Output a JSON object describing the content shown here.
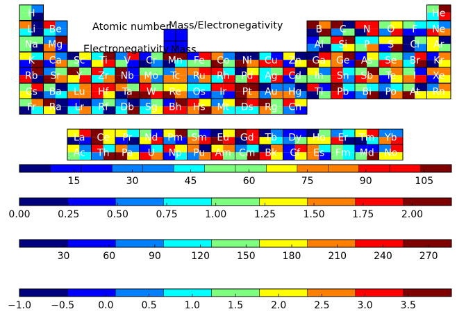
{
  "colormap": [
    "#00007f",
    "#0000ff",
    "#007fff",
    "#00ffff",
    "#7fff7f",
    "#ffff00",
    "#ff7f00",
    "#ff0000",
    "#7f0000"
  ],
  "chart_data": {
    "type": "heatmap",
    "title": "",
    "legend_labels": {
      "atomic_number": "Atomic number",
      "mass": "Mass",
      "electronegativity": "Electronegativity",
      "mass_electronegativity": "Mass/Electronegativity"
    },
    "elements": [
      {
        "symbol": "H",
        "period": 1,
        "group": 1
      },
      {
        "symbol": "He",
        "period": 1,
        "group": 18
      },
      {
        "symbol": "Li",
        "period": 2,
        "group": 1
      },
      {
        "symbol": "Be",
        "period": 2,
        "group": 2
      },
      {
        "symbol": "B",
        "period": 2,
        "group": 13
      },
      {
        "symbol": "C",
        "period": 2,
        "group": 14
      },
      {
        "symbol": "N",
        "period": 2,
        "group": 15
      },
      {
        "symbol": "O",
        "period": 2,
        "group": 16
      },
      {
        "symbol": "F",
        "period": 2,
        "group": 17
      },
      {
        "symbol": "Ne",
        "period": 2,
        "group": 18
      },
      {
        "symbol": "Na",
        "period": 3,
        "group": 1
      },
      {
        "symbol": "Mg",
        "period": 3,
        "group": 2
      },
      {
        "symbol": "Al",
        "period": 3,
        "group": 13
      },
      {
        "symbol": "Si",
        "period": 3,
        "group": 14
      },
      {
        "symbol": "P",
        "period": 3,
        "group": 15
      },
      {
        "symbol": "S",
        "period": 3,
        "group": 16
      },
      {
        "symbol": "Cl",
        "period": 3,
        "group": 17
      },
      {
        "symbol": "Ar",
        "period": 3,
        "group": 18
      },
      {
        "symbol": "K",
        "period": 4,
        "group": 1
      },
      {
        "symbol": "Ca",
        "period": 4,
        "group": 2
      },
      {
        "symbol": "Sc",
        "period": 4,
        "group": 3
      },
      {
        "symbol": "Ti",
        "period": 4,
        "group": 4
      },
      {
        "symbol": "V",
        "period": 4,
        "group": 5
      },
      {
        "symbol": "Cr",
        "period": 4,
        "group": 6
      },
      {
        "symbol": "Mn",
        "period": 4,
        "group": 7
      },
      {
        "symbol": "Fe",
        "period": 4,
        "group": 8
      },
      {
        "symbol": "Co",
        "period": 4,
        "group": 9
      },
      {
        "symbol": "Ni",
        "period": 4,
        "group": 10
      },
      {
        "symbol": "Cu",
        "period": 4,
        "group": 11
      },
      {
        "symbol": "Zn",
        "period": 4,
        "group": 12
      },
      {
        "symbol": "Ga",
        "period": 4,
        "group": 13
      },
      {
        "symbol": "Ge",
        "period": 4,
        "group": 14
      },
      {
        "symbol": "As",
        "period": 4,
        "group": 15
      },
      {
        "symbol": "Se",
        "period": 4,
        "group": 16
      },
      {
        "symbol": "Br",
        "period": 4,
        "group": 17
      },
      {
        "symbol": "Kr",
        "period": 4,
        "group": 18
      },
      {
        "symbol": "Rb",
        "period": 5,
        "group": 1
      },
      {
        "symbol": "Sr",
        "period": 5,
        "group": 2
      },
      {
        "symbol": "Y",
        "period": 5,
        "group": 3
      },
      {
        "symbol": "Zr",
        "period": 5,
        "group": 4
      },
      {
        "symbol": "Nb",
        "period": 5,
        "group": 5
      },
      {
        "symbol": "Mo",
        "period": 5,
        "group": 6
      },
      {
        "symbol": "Tc",
        "period": 5,
        "group": 7
      },
      {
        "symbol": "Ru",
        "period": 5,
        "group": 8
      },
      {
        "symbol": "Rh",
        "period": 5,
        "group": 9
      },
      {
        "symbol": "Pd",
        "period": 5,
        "group": 10
      },
      {
        "symbol": "Ag",
        "period": 5,
        "group": 11
      },
      {
        "symbol": "Cd",
        "period": 5,
        "group": 12
      },
      {
        "symbol": "In",
        "period": 5,
        "group": 13
      },
      {
        "symbol": "Sn",
        "period": 5,
        "group": 14
      },
      {
        "symbol": "Sb",
        "period": 5,
        "group": 15
      },
      {
        "symbol": "Te",
        "period": 5,
        "group": 16
      },
      {
        "symbol": "I",
        "period": 5,
        "group": 17
      },
      {
        "symbol": "Xe",
        "period": 5,
        "group": 18
      },
      {
        "symbol": "Cs",
        "period": 6,
        "group": 1
      },
      {
        "symbol": "Ba",
        "period": 6,
        "group": 2
      },
      {
        "symbol": "Lu",
        "period": 6,
        "group": 3
      },
      {
        "symbol": "Hf",
        "period": 6,
        "group": 4
      },
      {
        "symbol": "Ta",
        "period": 6,
        "group": 5
      },
      {
        "symbol": "W",
        "period": 6,
        "group": 6
      },
      {
        "symbol": "Re",
        "period": 6,
        "group": 7
      },
      {
        "symbol": "Os",
        "period": 6,
        "group": 8
      },
      {
        "symbol": "Ir",
        "period": 6,
        "group": 9
      },
      {
        "symbol": "Pt",
        "period": 6,
        "group": 10
      },
      {
        "symbol": "Au",
        "period": 6,
        "group": 11
      },
      {
        "symbol": "Hg",
        "period": 6,
        "group": 12
      },
      {
        "symbol": "Tl",
        "period": 6,
        "group": 13
      },
      {
        "symbol": "Pb",
        "period": 6,
        "group": 14
      },
      {
        "symbol": "Bi",
        "period": 6,
        "group": 15
      },
      {
        "symbol": "Po",
        "period": 6,
        "group": 16
      },
      {
        "symbol": "At",
        "period": 6,
        "group": 17
      },
      {
        "symbol": "Rn",
        "period": 6,
        "group": 18
      },
      {
        "symbol": "Fr",
        "period": 7,
        "group": 1
      },
      {
        "symbol": "Ra",
        "period": 7,
        "group": 2
      },
      {
        "symbol": "Lr",
        "period": 7,
        "group": 3
      },
      {
        "symbol": "Rf",
        "period": 7,
        "group": 4
      },
      {
        "symbol": "Db",
        "period": 7,
        "group": 5
      },
      {
        "symbol": "Sg",
        "period": 7,
        "group": 6
      },
      {
        "symbol": "Bh",
        "period": 7,
        "group": 7
      },
      {
        "symbol": "Hs",
        "period": 7,
        "group": 8
      },
      {
        "symbol": "Mt",
        "period": 7,
        "group": 9
      },
      {
        "symbol": "Ds",
        "period": 7,
        "group": 10
      },
      {
        "symbol": "Rg",
        "period": 7,
        "group": 11
      },
      {
        "symbol": "Cn",
        "period": 7,
        "group": 12
      },
      {
        "symbol": "La",
        "period": 8,
        "group": 3
      },
      {
        "symbol": "Ce",
        "period": 8,
        "group": 4
      },
      {
        "symbol": "Pr",
        "period": 8,
        "group": 5
      },
      {
        "symbol": "Nd",
        "period": 8,
        "group": 6
      },
      {
        "symbol": "Pm",
        "period": 8,
        "group": 7
      },
      {
        "symbol": "Sm",
        "period": 8,
        "group": 8
      },
      {
        "symbol": "Eu",
        "period": 8,
        "group": 9
      },
      {
        "symbol": "Gd",
        "period": 8,
        "group": 10
      },
      {
        "symbol": "Tb",
        "period": 8,
        "group": 11
      },
      {
        "symbol": "Dy",
        "period": 8,
        "group": 12
      },
      {
        "symbol": "Ho",
        "period": 8,
        "group": 13
      },
      {
        "symbol": "Er",
        "period": 8,
        "group": 14
      },
      {
        "symbol": "Tm",
        "period": 8,
        "group": 15
      },
      {
        "symbol": "Yb",
        "period": 8,
        "group": 16
      },
      {
        "symbol": "Ac",
        "period": 9,
        "group": 3
      },
      {
        "symbol": "Th",
        "period": 9,
        "group": 4
      },
      {
        "symbol": "Pa",
        "period": 9,
        "group": 5
      },
      {
        "symbol": "U",
        "period": 9,
        "group": 6
      },
      {
        "symbol": "Np",
        "period": 9,
        "group": 7
      },
      {
        "symbol": "Pu",
        "period": 9,
        "group": 8
      },
      {
        "symbol": "Am",
        "period": 9,
        "group": 9
      },
      {
        "symbol": "Cm",
        "period": 9,
        "group": 10
      },
      {
        "symbol": "Bk",
        "period": 9,
        "group": 11
      },
      {
        "symbol": "Cf",
        "period": 9,
        "group": 12
      },
      {
        "symbol": "Es",
        "period": 9,
        "group": 13
      },
      {
        "symbol": "Fm",
        "period": 9,
        "group": 14
      },
      {
        "symbol": "Md",
        "period": 9,
        "group": 15
      },
      {
        "symbol": "No",
        "period": 9,
        "group": 16
      }
    ],
    "colorbars": [
      {
        "name": "atomic-number",
        "range": [
          1,
          112
        ],
        "ticks": [
          15,
          30,
          45,
          60,
          75,
          90,
          105
        ],
        "tick_labels": [
          "15",
          "30",
          "45",
          "60",
          "75",
          "90",
          "105"
        ],
        "segments": 14
      },
      {
        "name": "electronegativity",
        "range": [
          0.0,
          2.2
        ],
        "ticks": [
          0.0,
          0.25,
          0.5,
          0.75,
          1.0,
          1.25,
          1.5,
          1.75,
          2.0
        ],
        "tick_labels": [
          "0.00",
          "0.25",
          "0.50",
          "0.75",
          "1.00",
          "1.25",
          "1.50",
          "1.75",
          "2.00"
        ],
        "segments": 9
      },
      {
        "name": "mass",
        "range": [
          1,
          285
        ],
        "ticks": [
          30,
          60,
          90,
          120,
          150,
          180,
          210,
          240,
          270
        ],
        "tick_labels": [
          "30",
          "60",
          "90",
          "120",
          "150",
          "180",
          "210",
          "240",
          "270"
        ],
        "segments": 9
      },
      {
        "name": "mass-electronegativity",
        "range": [
          -1.0,
          4.0
        ],
        "ticks": [
          -1.0,
          -0.5,
          0.0,
          0.5,
          1.0,
          1.5,
          2.0,
          2.5,
          3.0,
          3.5
        ],
        "tick_labels": [
          "−1.0",
          "−0.5",
          "0.0",
          "0.5",
          "1.0",
          "1.5",
          "2.0",
          "2.5",
          "3.0",
          "3.5"
        ],
        "segments": 9
      }
    ]
  }
}
